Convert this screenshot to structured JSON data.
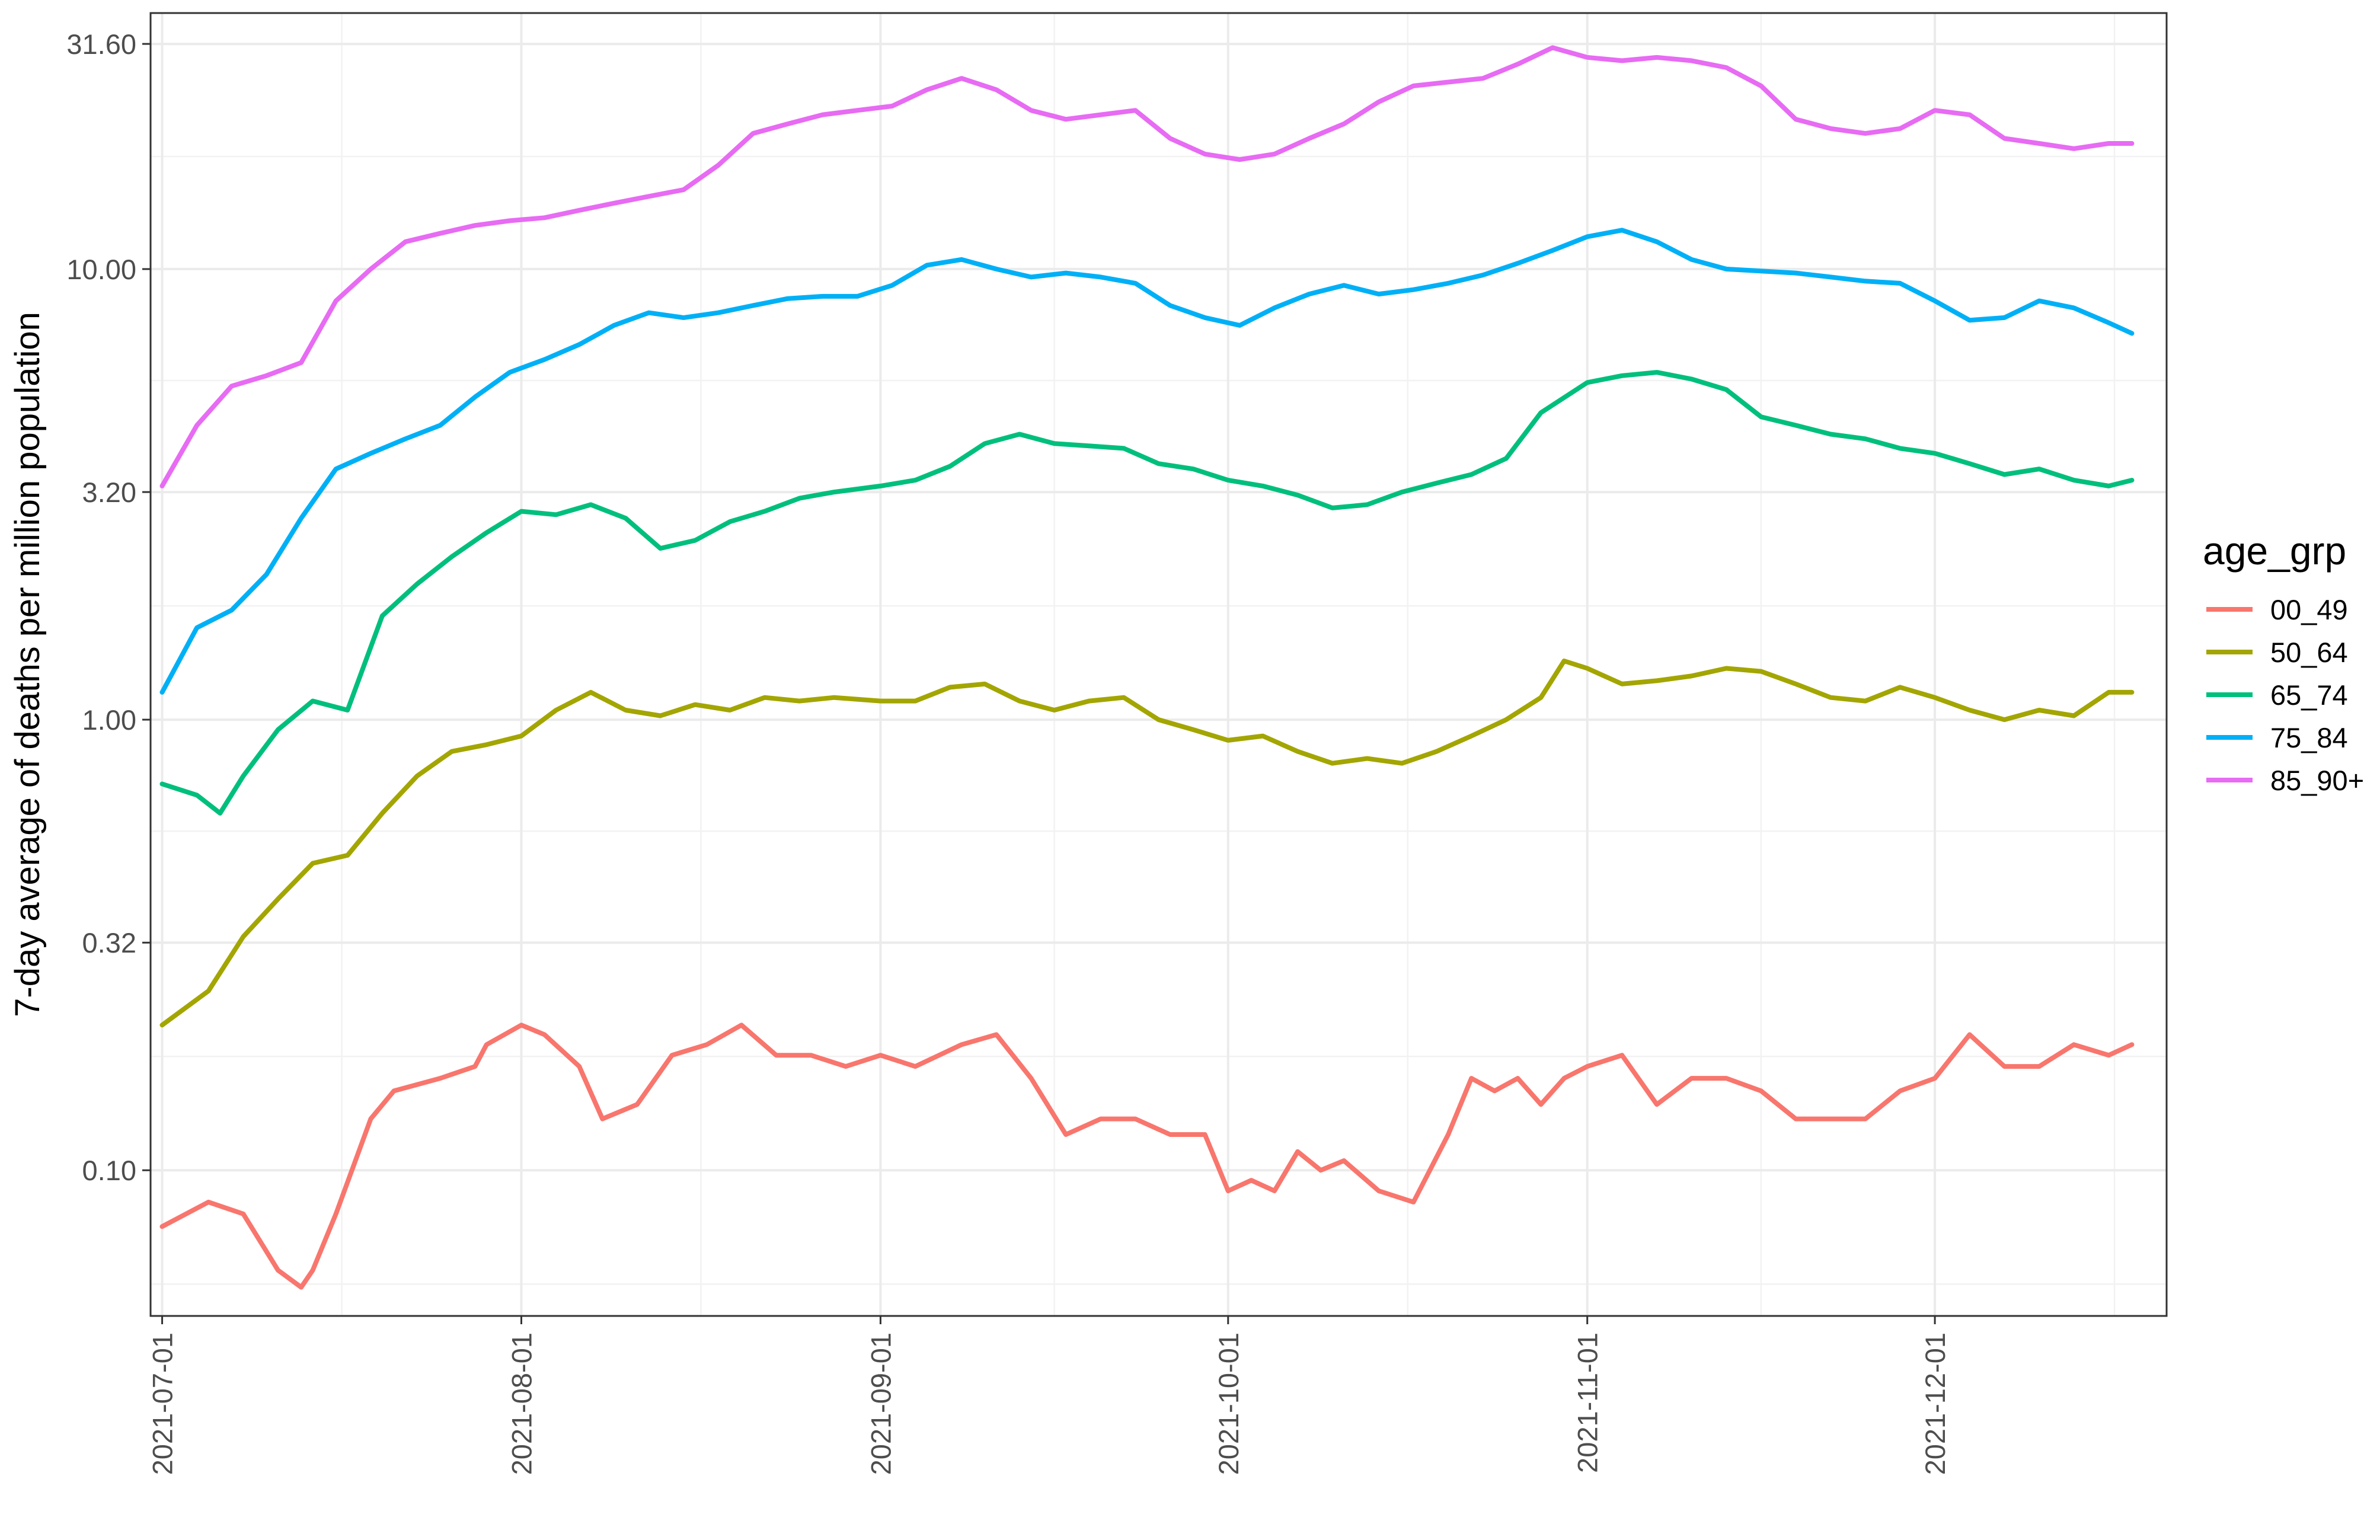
{
  "chart_data": {
    "type": "line",
    "title": "",
    "xlabel": "",
    "ylabel": "7-day average of deaths per million population",
    "y_scale": "log10",
    "ylim": [
      0.0475,
      37.0
    ],
    "xlim": [
      "2021-06-30",
      "2021-12-21"
    ],
    "yticks": [
      "31.60",
      "10.00",
      "3.20",
      "1.00",
      "0.32",
      "0.10"
    ],
    "ytick_values": [
      31.6,
      10.0,
      3.2,
      1.0,
      0.32,
      0.1
    ],
    "xticks": [
      "2021-07-01",
      "2021-08-01",
      "2021-09-01",
      "2021-10-01",
      "2021-11-01",
      "2021-12-01"
    ],
    "grid": true,
    "legend": {
      "title": "age_grp",
      "position": "right"
    },
    "series": [
      {
        "name": "00_49",
        "color": "#F8766D",
        "x": [
          "2021-07-01",
          "2021-07-05",
          "2021-07-08",
          "2021-07-11",
          "2021-07-13",
          "2021-07-14",
          "2021-07-16",
          "2021-07-19",
          "2021-07-21",
          "2021-07-25",
          "2021-07-28",
          "2021-07-29",
          "2021-08-01",
          "2021-08-03",
          "2021-08-06",
          "2021-08-08",
          "2021-08-11",
          "2021-08-14",
          "2021-08-17",
          "2021-08-20",
          "2021-08-23",
          "2021-08-26",
          "2021-08-29",
          "2021-09-01",
          "2021-09-04",
          "2021-09-08",
          "2021-09-11",
          "2021-09-14",
          "2021-09-17",
          "2021-09-20",
          "2021-09-23",
          "2021-09-26",
          "2021-09-29",
          "2021-10-01",
          "2021-10-03",
          "2021-10-05",
          "2021-10-07",
          "2021-10-09",
          "2021-10-11",
          "2021-10-14",
          "2021-10-17",
          "2021-10-20",
          "2021-10-22",
          "2021-10-24",
          "2021-10-26",
          "2021-10-28",
          "2021-10-30",
          "2021-11-01",
          "2021-11-04",
          "2021-11-07",
          "2021-11-10",
          "2021-11-13",
          "2021-11-16",
          "2021-11-19",
          "2021-11-22",
          "2021-11-25",
          "2021-11-28",
          "2021-12-01",
          "2021-12-04",
          "2021-12-07",
          "2021-12-10",
          "2021-12-13",
          "2021-12-16",
          "2021-12-18"
        ],
        "values": [
          0.075,
          0.085,
          0.08,
          0.06,
          0.055,
          0.06,
          0.08,
          0.13,
          0.15,
          0.16,
          0.17,
          0.19,
          0.21,
          0.2,
          0.17,
          0.13,
          0.14,
          0.18,
          0.19,
          0.21,
          0.18,
          0.18,
          0.17,
          0.18,
          0.17,
          0.19,
          0.2,
          0.16,
          0.12,
          0.13,
          0.13,
          0.12,
          0.12,
          0.09,
          0.095,
          0.09,
          0.11,
          0.1,
          0.105,
          0.09,
          0.085,
          0.12,
          0.16,
          0.15,
          0.16,
          0.14,
          0.16,
          0.17,
          0.18,
          0.14,
          0.16,
          0.16,
          0.15,
          0.13,
          0.13,
          0.13,
          0.15,
          0.16,
          0.2,
          0.17,
          0.17,
          0.19,
          0.18,
          0.19
        ]
      },
      {
        "name": "50_64",
        "color": "#A3A500",
        "x": [
          "2021-07-01",
          "2021-07-05",
          "2021-07-08",
          "2021-07-11",
          "2021-07-14",
          "2021-07-17",
          "2021-07-20",
          "2021-07-23",
          "2021-07-26",
          "2021-07-29",
          "2021-08-01",
          "2021-08-04",
          "2021-08-07",
          "2021-08-10",
          "2021-08-13",
          "2021-08-16",
          "2021-08-19",
          "2021-08-22",
          "2021-08-25",
          "2021-08-28",
          "2021-09-01",
          "2021-09-04",
          "2021-09-07",
          "2021-09-10",
          "2021-09-13",
          "2021-09-16",
          "2021-09-19",
          "2021-09-22",
          "2021-09-25",
          "2021-09-28",
          "2021-10-01",
          "2021-10-04",
          "2021-10-07",
          "2021-10-10",
          "2021-10-13",
          "2021-10-16",
          "2021-10-19",
          "2021-10-22",
          "2021-10-25",
          "2021-10-28",
          "2021-10-30",
          "2021-11-01",
          "2021-11-04",
          "2021-11-07",
          "2021-11-10",
          "2021-11-13",
          "2021-11-16",
          "2021-11-19",
          "2021-11-22",
          "2021-11-25",
          "2021-11-28",
          "2021-12-01",
          "2021-12-04",
          "2021-12-07",
          "2021-12-10",
          "2021-12-13",
          "2021-12-16",
          "2021-12-18"
        ],
        "values": [
          0.21,
          0.25,
          0.33,
          0.4,
          0.48,
          0.5,
          0.62,
          0.75,
          0.85,
          0.88,
          0.92,
          1.05,
          1.15,
          1.05,
          1.02,
          1.08,
          1.05,
          1.12,
          1.1,
          1.12,
          1.1,
          1.1,
          1.18,
          1.2,
          1.1,
          1.05,
          1.1,
          1.12,
          1.0,
          0.95,
          0.9,
          0.92,
          0.85,
          0.8,
          0.82,
          0.8,
          0.85,
          0.92,
          1.0,
          1.12,
          1.35,
          1.3,
          1.2,
          1.22,
          1.25,
          1.3,
          1.28,
          1.2,
          1.12,
          1.1,
          1.18,
          1.12,
          1.05,
          1.0,
          1.05,
          1.02,
          1.15,
          1.15
        ]
      },
      {
        "name": "65_74",
        "color": "#00BF7D",
        "x": [
          "2021-07-01",
          "2021-07-04",
          "2021-07-06",
          "2021-07-08",
          "2021-07-11",
          "2021-07-14",
          "2021-07-17",
          "2021-07-20",
          "2021-07-23",
          "2021-07-26",
          "2021-07-29",
          "2021-08-01",
          "2021-08-04",
          "2021-08-07",
          "2021-08-10",
          "2021-08-13",
          "2021-08-16",
          "2021-08-19",
          "2021-08-22",
          "2021-08-25",
          "2021-08-28",
          "2021-09-01",
          "2021-09-04",
          "2021-09-07",
          "2021-09-10",
          "2021-09-13",
          "2021-09-16",
          "2021-09-19",
          "2021-09-22",
          "2021-09-25",
          "2021-09-28",
          "2021-10-01",
          "2021-10-04",
          "2021-10-07",
          "2021-10-10",
          "2021-10-13",
          "2021-10-16",
          "2021-10-19",
          "2021-10-22",
          "2021-10-25",
          "2021-10-28",
          "2021-11-01",
          "2021-11-04",
          "2021-11-07",
          "2021-11-10",
          "2021-11-13",
          "2021-11-16",
          "2021-11-19",
          "2021-11-22",
          "2021-11-25",
          "2021-11-28",
          "2021-12-01",
          "2021-12-04",
          "2021-12-07",
          "2021-12-10",
          "2021-12-13",
          "2021-12-16",
          "2021-12-18"
        ],
        "values": [
          0.72,
          0.68,
          0.62,
          0.75,
          0.95,
          1.1,
          1.05,
          1.7,
          2.0,
          2.3,
          2.6,
          2.9,
          2.85,
          3.0,
          2.8,
          2.4,
          2.5,
          2.75,
          2.9,
          3.1,
          3.2,
          3.3,
          3.4,
          3.65,
          4.1,
          4.3,
          4.1,
          4.05,
          4.0,
          3.7,
          3.6,
          3.4,
          3.3,
          3.15,
          2.95,
          3.0,
          3.2,
          3.35,
          3.5,
          3.8,
          4.8,
          5.6,
          5.8,
          5.9,
          5.7,
          5.4,
          4.7,
          4.5,
          4.3,
          4.2,
          4.0,
          3.9,
          3.7,
          3.5,
          3.6,
          3.4,
          3.3,
          3.4
        ]
      },
      {
        "name": "75_84",
        "color": "#00B0F6",
        "x": [
          "2021-07-01",
          "2021-07-04",
          "2021-07-07",
          "2021-07-10",
          "2021-07-13",
          "2021-07-16",
          "2021-07-19",
          "2021-07-22",
          "2021-07-25",
          "2021-07-28",
          "2021-07-31",
          "2021-08-03",
          "2021-08-06",
          "2021-08-09",
          "2021-08-12",
          "2021-08-15",
          "2021-08-18",
          "2021-08-21",
          "2021-08-24",
          "2021-08-27",
          "2021-08-30",
          "2021-09-02",
          "2021-09-05",
          "2021-09-08",
          "2021-09-11",
          "2021-09-14",
          "2021-09-17",
          "2021-09-20",
          "2021-09-23",
          "2021-09-26",
          "2021-09-29",
          "2021-10-02",
          "2021-10-05",
          "2021-10-08",
          "2021-10-11",
          "2021-10-14",
          "2021-10-17",
          "2021-10-20",
          "2021-10-23",
          "2021-10-26",
          "2021-10-29",
          "2021-11-01",
          "2021-11-04",
          "2021-11-07",
          "2021-11-10",
          "2021-11-13",
          "2021-11-16",
          "2021-11-19",
          "2021-11-22",
          "2021-11-25",
          "2021-11-28",
          "2021-12-01",
          "2021-12-04",
          "2021-12-07",
          "2021-12-10",
          "2021-12-13",
          "2021-12-16",
          "2021-12-18"
        ],
        "values": [
          1.15,
          1.6,
          1.75,
          2.1,
          2.8,
          3.6,
          3.9,
          4.2,
          4.5,
          5.2,
          5.9,
          6.3,
          6.8,
          7.5,
          8.0,
          7.8,
          8.0,
          8.3,
          8.6,
          8.7,
          8.7,
          9.2,
          10.2,
          10.5,
          10.0,
          9.6,
          9.8,
          9.6,
          9.3,
          8.3,
          7.8,
          7.5,
          8.2,
          8.8,
          9.2,
          8.8,
          9.0,
          9.3,
          9.7,
          10.3,
          11.0,
          11.8,
          12.2,
          11.5,
          10.5,
          10.0,
          9.9,
          9.8,
          9.6,
          9.4,
          9.3,
          8.5,
          7.7,
          7.8,
          8.5,
          8.2,
          7.6,
          7.2
        ]
      },
      {
        "name": "85_90+",
        "color": "#E76BF3",
        "x": [
          "2021-07-01",
          "2021-07-04",
          "2021-07-07",
          "2021-07-10",
          "2021-07-13",
          "2021-07-16",
          "2021-07-19",
          "2021-07-22",
          "2021-07-25",
          "2021-07-28",
          "2021-07-31",
          "2021-08-03",
          "2021-08-06",
          "2021-08-09",
          "2021-08-12",
          "2021-08-15",
          "2021-08-18",
          "2021-08-21",
          "2021-08-24",
          "2021-08-27",
          "2021-08-30",
          "2021-09-02",
          "2021-09-05",
          "2021-09-08",
          "2021-09-11",
          "2021-09-14",
          "2021-09-17",
          "2021-09-20",
          "2021-09-23",
          "2021-09-26",
          "2021-09-29",
          "2021-10-02",
          "2021-10-05",
          "2021-10-08",
          "2021-10-11",
          "2021-10-14",
          "2021-10-17",
          "2021-10-20",
          "2021-10-23",
          "2021-10-26",
          "2021-10-29",
          "2021-11-01",
          "2021-11-04",
          "2021-11-07",
          "2021-11-10",
          "2021-11-13",
          "2021-11-16",
          "2021-11-19",
          "2021-11-22",
          "2021-11-25",
          "2021-11-28",
          "2021-12-01",
          "2021-12-04",
          "2021-12-07",
          "2021-12-10",
          "2021-12-13",
          "2021-12-16",
          "2021-12-18"
        ],
        "values": [
          3.3,
          4.5,
          5.5,
          5.8,
          6.2,
          8.5,
          10.0,
          11.5,
          12.0,
          12.5,
          12.8,
          13.0,
          13.5,
          14.0,
          14.5,
          15.0,
          17.0,
          20.0,
          21.0,
          22.0,
          22.5,
          23.0,
          25.0,
          26.5,
          25.0,
          22.5,
          21.5,
          22.0,
          22.5,
          19.5,
          18.0,
          17.5,
          18.0,
          19.5,
          21.0,
          23.5,
          25.5,
          26.0,
          26.5,
          28.5,
          31.0,
          29.5,
          29.0,
          29.5,
          29.0,
          28.0,
          25.5,
          21.5,
          20.5,
          20.0,
          20.5,
          22.5,
          22.0,
          19.5,
          19.0,
          18.5,
          19.0,
          19.0
        ]
      }
    ]
  }
}
